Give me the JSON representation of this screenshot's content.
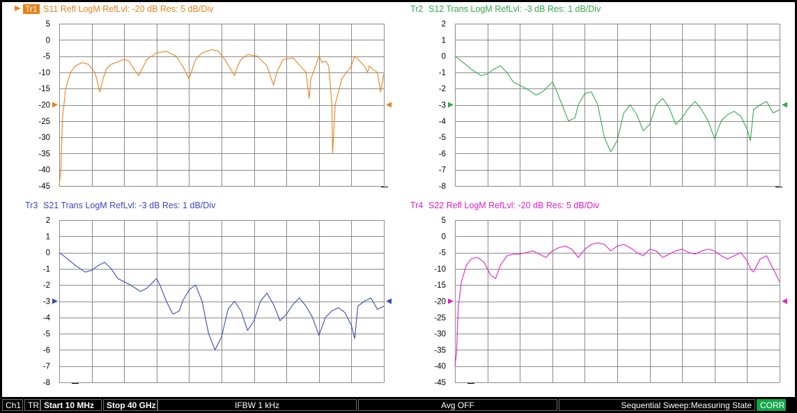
{
  "charts": [
    {
      "trace_tag": "Tr1",
      "title": "S11 Refl LogM RefLvl: -20  dB Res: 5  dB/Div",
      "color": "#e8811a",
      "active": true,
      "chart_data": {
        "type": "line",
        "title": "S11 Refl LogM RefLvl: -20  dB Res: 5  dB/Div",
        "ylim": [
          -45,
          5
        ],
        "yticks": [
          5,
          0,
          -5,
          -10,
          -15,
          -20,
          -25,
          -30,
          -35,
          -40,
          -45
        ],
        "ref_level": -20,
        "xlim": [
          0,
          1
        ],
        "grid": true,
        "series": [
          {
            "x": [
              0,
              0.005,
              0.01,
              0.02,
              0.035,
              0.05,
              0.07,
              0.09,
              0.11,
              0.125,
              0.135,
              0.145,
              0.16,
              0.175,
              0.2,
              0.215,
              0.23,
              0.245,
              0.255,
              0.27,
              0.3,
              0.33,
              0.36,
              0.38,
              0.4,
              0.41,
              0.42,
              0.44,
              0.47,
              0.49,
              0.51,
              0.54,
              0.55,
              0.56,
              0.58,
              0.61,
              0.64,
              0.66,
              0.67,
              0.69,
              0.72,
              0.76,
              0.77,
              0.775,
              0.79,
              0.8,
              0.81,
              0.82,
              0.83,
              0.84,
              0.842,
              0.85,
              0.87,
              0.9,
              0.91,
              0.92,
              0.94,
              0.95,
              0.955,
              0.965,
              0.98,
              0.99,
              1.0
            ],
            "values": [
              -45,
              -40,
              -24,
              -15,
              -10,
              -8,
              -7,
              -7.5,
              -10,
              -16,
              -12,
              -9,
              -7.5,
              -7,
              -6,
              -6.5,
              -9,
              -11,
              -9,
              -6,
              -4,
              -3.5,
              -5,
              -8,
              -12,
              -9,
              -6,
              -4,
              -3,
              -3.5,
              -6,
              -11,
              -8,
              -6,
              -4.5,
              -5,
              -8,
              -14,
              -10,
              -6,
              -5.5,
              -10,
              -18,
              -12,
              -8,
              -5,
              -7,
              -6.5,
              -8,
              -20,
              -35,
              -20,
              -12,
              -8,
              -5,
              -6,
              -8,
              -10,
              -8,
              -9,
              -10,
              -16,
              -10.5
            ]
          }
        ]
      }
    },
    {
      "trace_tag": "Tr2",
      "title": "S12 Trans LogM RefLvl: -3  dB Res: 1  dB/Div",
      "color": "#35a84a",
      "active": false,
      "chart_data": {
        "type": "line",
        "title": "S12 Trans LogM RefLvl: -3  dB Res: 1  dB/Div",
        "ylim": [
          -8,
          2
        ],
        "yticks": [
          2,
          1,
          0,
          -1,
          -2,
          -3,
          -4,
          -5,
          -6,
          -7,
          -8
        ],
        "ref_level": -3,
        "xlim": [
          0,
          1
        ],
        "grid": true,
        "series": [
          {
            "x": [
              0,
              0.02,
              0.05,
              0.08,
              0.1,
              0.12,
              0.14,
              0.16,
              0.18,
              0.2,
              0.22,
              0.25,
              0.27,
              0.29,
              0.3,
              0.31,
              0.33,
              0.35,
              0.37,
              0.38,
              0.4,
              0.42,
              0.44,
              0.46,
              0.48,
              0.5,
              0.52,
              0.54,
              0.56,
              0.58,
              0.6,
              0.62,
              0.64,
              0.66,
              0.68,
              0.7,
              0.72,
              0.74,
              0.76,
              0.78,
              0.8,
              0.82,
              0.84,
              0.86,
              0.88,
              0.9,
              0.91,
              0.92,
              0.94,
              0.96,
              0.98,
              1.0
            ],
            "values": [
              0,
              -0.3,
              -0.8,
              -1.2,
              -1.1,
              -0.8,
              -0.6,
              -1.0,
              -1.6,
              -1.8,
              -2.0,
              -2.4,
              -2.2,
              -1.8,
              -1.6,
              -2.0,
              -3.0,
              -4.0,
              -3.8,
              -3.0,
              -2.3,
              -2.2,
              -3.0,
              -5.0,
              -5.9,
              -5.2,
              -3.5,
              -3.0,
              -3.6,
              -4.6,
              -4.2,
              -3.0,
              -2.6,
              -3.2,
              -4.2,
              -3.8,
              -3.2,
              -2.8,
              -3.3,
              -4.0,
              -5.1,
              -4.0,
              -3.6,
              -3.4,
              -3.7,
              -4.5,
              -5.2,
              -3.3,
              -3.0,
              -2.8,
              -3.5,
              -3.3
            ]
          }
        ]
      }
    },
    {
      "trace_tag": "Tr3",
      "title": "S21 Trans LogM RefLvl: -3  dB Res: 1  dB/Div",
      "color": "#3a48b8",
      "active": false,
      "chart_data": {
        "type": "line",
        "title": "S21 Trans LogM RefLvl: -3  dB Res: 1  dB/Div",
        "ylim": [
          -8,
          2
        ],
        "yticks": [
          2,
          1,
          0,
          -1,
          -2,
          -3,
          -4,
          -5,
          -6,
          -7,
          -8
        ],
        "ref_level": -3,
        "xlim": [
          0,
          1
        ],
        "grid": true,
        "series": [
          {
            "x": [
              0,
              0.02,
              0.05,
              0.08,
              0.1,
              0.12,
              0.14,
              0.16,
              0.18,
              0.2,
              0.22,
              0.25,
              0.27,
              0.29,
              0.3,
              0.31,
              0.33,
              0.35,
              0.37,
              0.38,
              0.4,
              0.42,
              0.44,
              0.46,
              0.48,
              0.5,
              0.52,
              0.54,
              0.56,
              0.58,
              0.6,
              0.62,
              0.64,
              0.66,
              0.68,
              0.7,
              0.72,
              0.74,
              0.76,
              0.78,
              0.8,
              0.82,
              0.84,
              0.86,
              0.88,
              0.9,
              0.91,
              0.92,
              0.94,
              0.96,
              0.98,
              1.0
            ],
            "values": [
              0,
              -0.3,
              -0.8,
              -1.2,
              -1.1,
              -0.8,
              -0.6,
              -1.0,
              -1.6,
              -1.8,
              -2.0,
              -2.4,
              -2.2,
              -1.8,
              -1.6,
              -2.0,
              -3.0,
              -3.8,
              -3.6,
              -3.0,
              -2.3,
              -2.0,
              -3.0,
              -5.0,
              -6.0,
              -5.2,
              -3.5,
              -3.0,
              -3.6,
              -4.8,
              -4.2,
              -3.0,
              -2.5,
              -3.2,
              -4.2,
              -3.8,
              -3.2,
              -2.8,
              -3.3,
              -4.0,
              -5.1,
              -4.0,
              -3.6,
              -3.4,
              -3.7,
              -4.5,
              -5.3,
              -3.3,
              -3.0,
              -2.8,
              -3.5,
              -3.3
            ]
          }
        ]
      }
    },
    {
      "trace_tag": "Tr4",
      "title": "S22 Refl LogM RefLvl: -20  dB Res: 5  dB/Div",
      "color": "#dd21c9",
      "active": false,
      "chart_data": {
        "type": "line",
        "title": "S22 Refl LogM RefLvl: -20  dB Res: 5  dB/Div",
        "ylim": [
          -45,
          5
        ],
        "yticks": [
          5,
          0,
          -5,
          -10,
          -15,
          -20,
          -25,
          -30,
          -35,
          -40,
          -45
        ],
        "ref_level": -20,
        "xlim": [
          0,
          1
        ],
        "grid": true,
        "series": [
          {
            "x": [
              0,
              0.005,
              0.01,
              0.02,
              0.035,
              0.05,
              0.07,
              0.09,
              0.11,
              0.125,
              0.14,
              0.16,
              0.18,
              0.2,
              0.22,
              0.24,
              0.26,
              0.28,
              0.3,
              0.32,
              0.34,
              0.36,
              0.38,
              0.4,
              0.42,
              0.44,
              0.46,
              0.48,
              0.5,
              0.52,
              0.54,
              0.56,
              0.58,
              0.6,
              0.62,
              0.64,
              0.66,
              0.68,
              0.7,
              0.72,
              0.74,
              0.76,
              0.78,
              0.8,
              0.82,
              0.84,
              0.86,
              0.88,
              0.9,
              0.91,
              0.92,
              0.94,
              0.96,
              0.98,
              1.0
            ],
            "values": [
              -40,
              -36,
              -22,
              -14,
              -9,
              -7,
              -6.5,
              -8,
              -12,
              -13,
              -9,
              -6,
              -5.5,
              -5.5,
              -5,
              -4.5,
              -5.5,
              -6.5,
              -4.5,
              -3.5,
              -3,
              -4,
              -6.5,
              -4,
              -2.5,
              -2,
              -2.5,
              -4.5,
              -3,
              -2.5,
              -3.5,
              -5,
              -6,
              -4,
              -4.5,
              -6.5,
              -5.5,
              -4.5,
              -4,
              -5,
              -5.5,
              -4.5,
              -4,
              -4.5,
              -6,
              -7,
              -6,
              -5,
              -7.5,
              -10,
              -11,
              -7,
              -6,
              -10,
              -14
            ]
          }
        ]
      }
    }
  ],
  "status": {
    "channel": "Ch1",
    "mode": "TR",
    "start": "Start 10 MHz",
    "stop": "Stop 40 GHz",
    "ifbw": "IFBW 1 kHz",
    "avg": "Avg OFF",
    "sweep": "Sequential Sweep:Measuring State",
    "corr": "CORR"
  }
}
